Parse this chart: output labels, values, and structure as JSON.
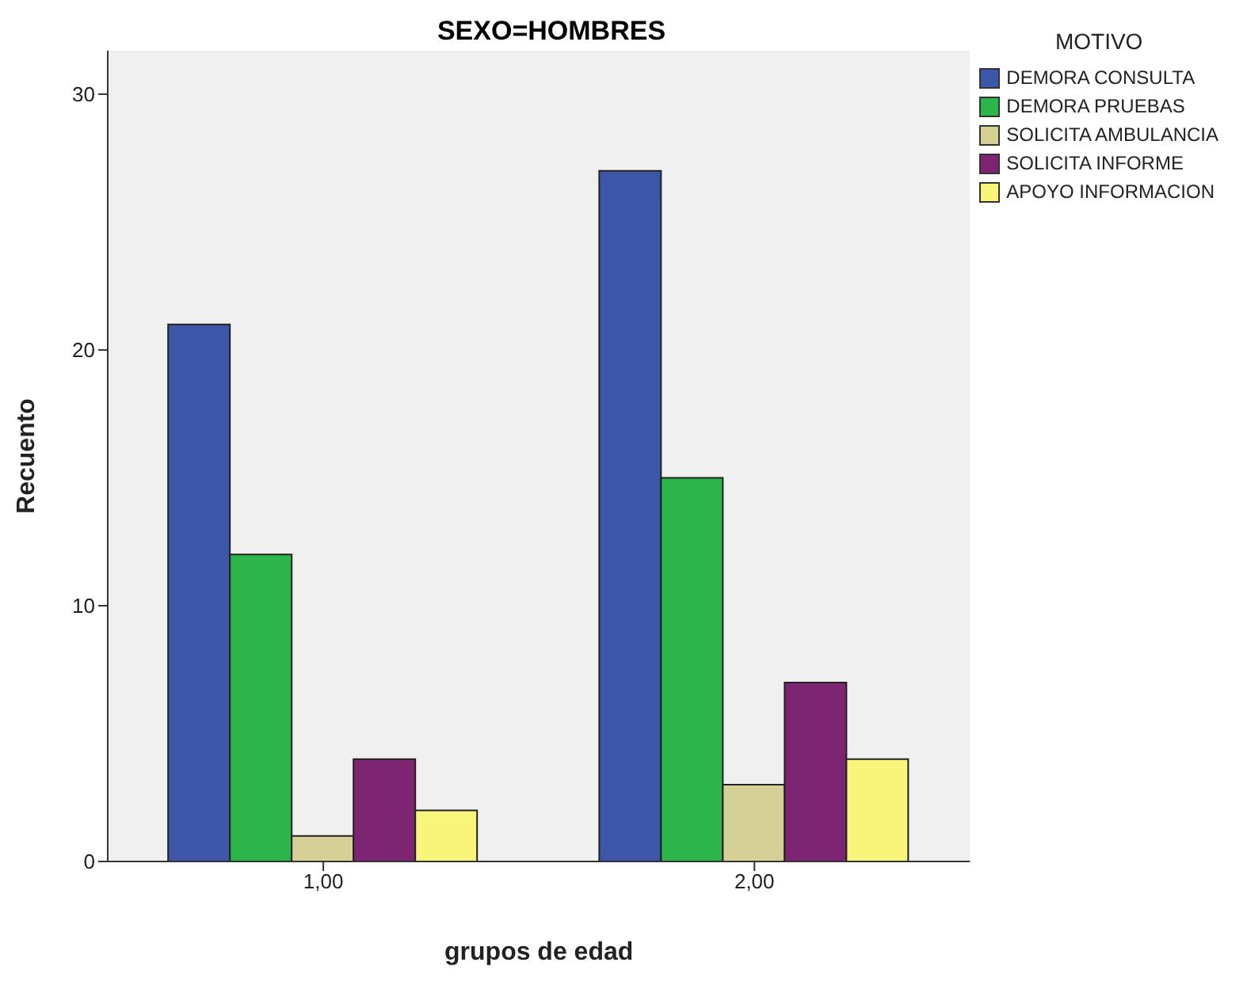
{
  "chart_data": {
    "type": "bar",
    "title": "SEXO=HOMBRES",
    "xlabel": "grupos de edad",
    "ylabel": "Recuento",
    "legend_title": "MOTIVO",
    "categories": [
      "1,00",
      "2,00"
    ],
    "series": [
      {
        "name": "DEMORA CONSULTA",
        "color": "#3d57a8",
        "values": [
          21,
          27
        ]
      },
      {
        "name": "DEMORA PRUEBAS",
        "color": "#2bb54a",
        "values": [
          12,
          15
        ]
      },
      {
        "name": "SOLICITA AMBULANCIA",
        "color": "#d6cf96",
        "values": [
          1,
          3
        ]
      },
      {
        "name": "SOLICITA INFORME",
        "color": "#7d2472",
        "values": [
          4,
          7
        ]
      },
      {
        "name": "APOYO INFORMACION",
        "color": "#f8f57a",
        "values": [
          2,
          4
        ]
      }
    ],
    "ylim": [
      0,
      31.7
    ],
    "yticks": [
      0,
      10,
      20,
      30
    ],
    "grid": false,
    "legend": "right"
  }
}
